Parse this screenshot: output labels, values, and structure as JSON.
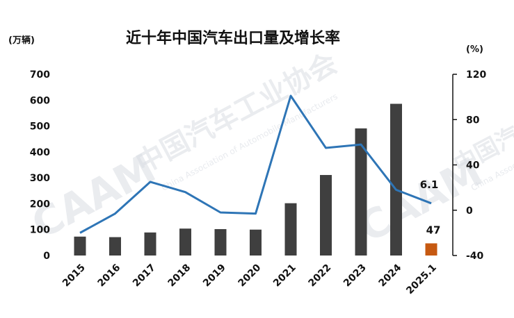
{
  "chart_data": {
    "type": "bar+line",
    "title": "近十年中国汽车出口量及增长率",
    "left_unit": "(万辆)",
    "right_unit": "(%)",
    "categories": [
      "2015",
      "2016",
      "2017",
      "2018",
      "2019",
      "2020",
      "2021",
      "2022",
      "2023",
      "2024",
      "2025.1"
    ],
    "series": [
      {
        "kind": "bar",
        "axis": "left",
        "values": [
          73,
          71,
          89,
          104,
          102,
          100,
          202,
          311,
          491,
          586,
          47
        ],
        "colors": [
          "#3f3f3f",
          "#3f3f3f",
          "#3f3f3f",
          "#3f3f3f",
          "#3f3f3f",
          "#3f3f3f",
          "#3f3f3f",
          "#3f3f3f",
          "#3f3f3f",
          "#3f3f3f",
          "#c65911"
        ]
      },
      {
        "kind": "line",
        "axis": "right",
        "color": "#2e75b6",
        "values": [
          -20,
          -3,
          25,
          16,
          -2,
          -3,
          101,
          55,
          58,
          18,
          6.1
        ]
      }
    ],
    "left_ticks": [
      "0",
      "100",
      "200",
      "300",
      "400",
      "500",
      "600",
      "700"
    ],
    "right_ticks": [
      "-40",
      "0",
      "40",
      "80",
      "120"
    ],
    "ylim_left": [
      0,
      700
    ],
    "ylim_right": [
      -40,
      120
    ],
    "annotations": {
      "line_last": "6.1",
      "bar_last": "47"
    },
    "grid": false,
    "legend": "none"
  },
  "watermark": {
    "text_cn": "中国汽车工业协会",
    "text_en": "China Association of Automobile Manufacturers",
    "logo": "CAAM"
  }
}
